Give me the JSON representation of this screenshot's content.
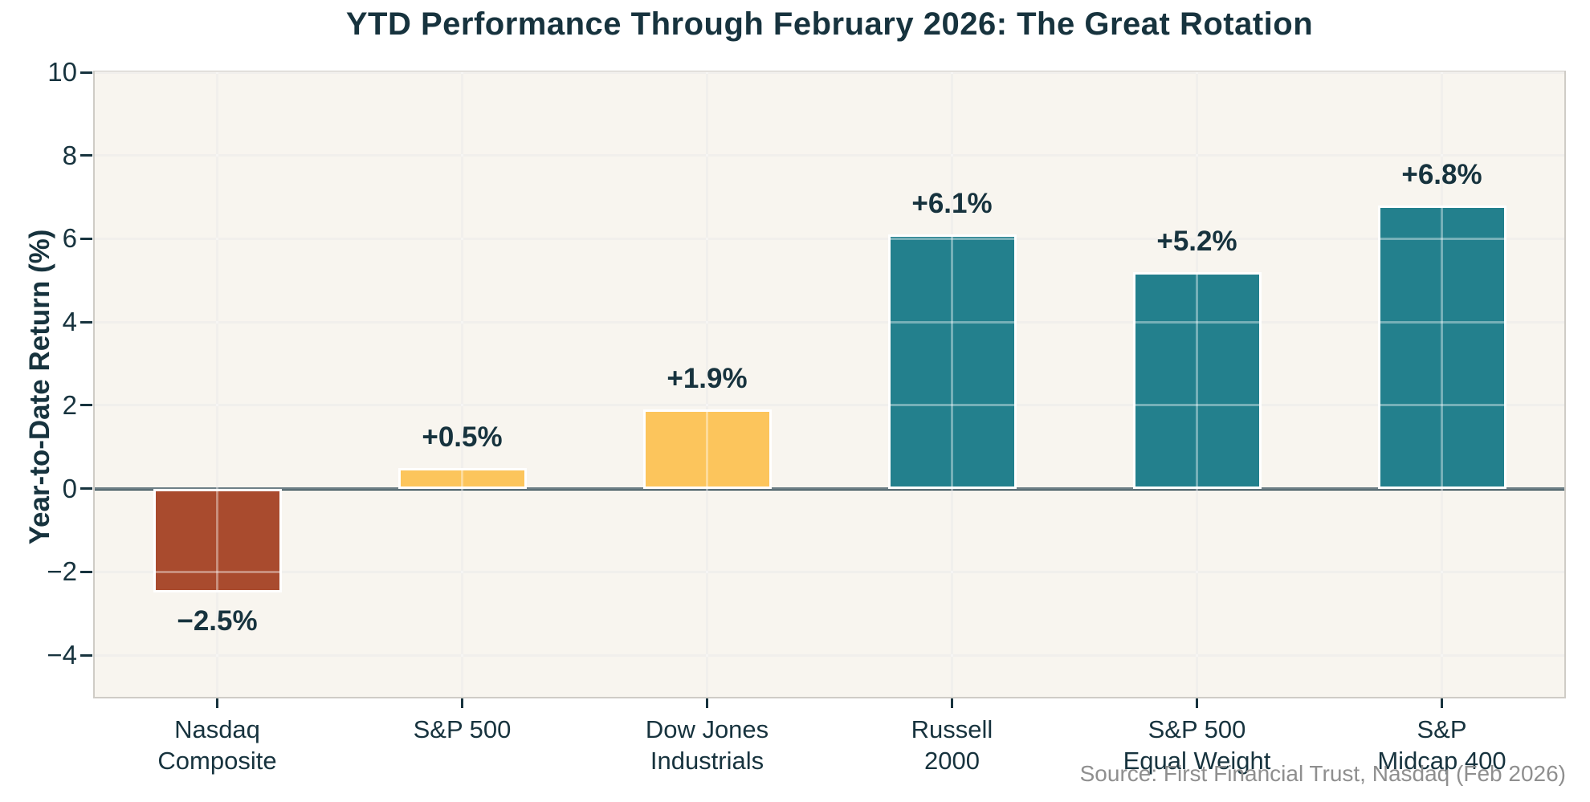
{
  "chart_data": {
    "type": "bar",
    "title": "YTD Performance Through February 2026: The Great Rotation",
    "xlabel": "",
    "ylabel": "Year-to-Date Return (%)",
    "ylim": [
      -5,
      10
    ],
    "yticks": [
      10,
      8,
      6,
      4,
      2,
      0,
      -2,
      -4
    ],
    "grid": true,
    "zero_line": true,
    "legend": "none",
    "categories": [
      "Nasdaq\nComposite",
      "S&P 500",
      "Dow Jones\nIndustrials",
      "Russell\n2000",
      "S&P 500\nEqual Weight",
      "S&P\nMidcap 400"
    ],
    "values": [
      -2.5,
      0.5,
      1.9,
      6.1,
      5.2,
      6.8
    ],
    "bar_labels": [
      "-2.5%",
      "+0.5%",
      "+1.9%",
      "+6.1%",
      "+5.2%",
      "+6.8%"
    ],
    "bar_colors": [
      "#a94b2e",
      "#fcc55c",
      "#fcc55c",
      "#23808d",
      "#23808d",
      "#23808d"
    ],
    "source": "Source: First Financial Trust, Nasdaq (Feb 2026)",
    "colors": {
      "text": "#17333e",
      "plot_background": "#f8f5ef",
      "figure_background": "#ffffff",
      "gridline": "#e9e6e0",
      "spine": "#cfccc6",
      "zero_line": "#17333e",
      "bar_edge": "#ffffff",
      "negative_bar": "#a94b2e",
      "neutral_bar": "#fcc55c",
      "positive_bar": "#23808d",
      "source_text": "#8f8f8f"
    }
  }
}
